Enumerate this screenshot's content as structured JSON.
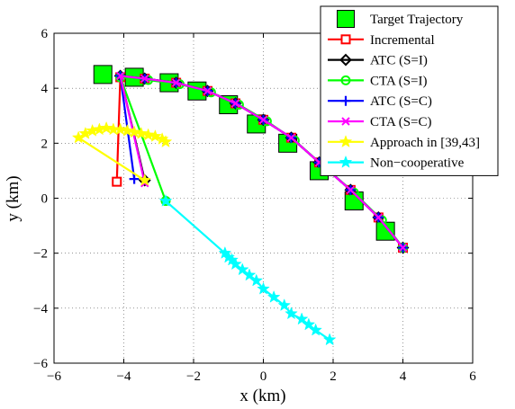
{
  "chart_data": {
    "type": "line",
    "title": "",
    "xlabel": "x (km)",
    "ylabel": "y (km)",
    "xlim": [
      -6,
      6
    ],
    "ylim": [
      -6,
      6
    ],
    "xticks": [
      -6,
      -4,
      -2,
      0,
      2,
      4,
      6
    ],
    "yticks": [
      -6,
      -4,
      -2,
      0,
      2,
      4,
      6
    ],
    "xtick_labels": [
      "−6",
      "−4",
      "−2",
      "0",
      "2",
      "4",
      "6"
    ],
    "ytick_labels": [
      "−6",
      "−4",
      "−2",
      "0",
      "2",
      "4",
      "6"
    ],
    "grid": true,
    "legend_position": "top-right",
    "series": [
      {
        "name": "Target Trajectory",
        "color": "#000000",
        "marker": "square-filled",
        "marker_fill": "#00ff00",
        "line": false,
        "points": [
          [
            -4.6,
            4.5
          ],
          [
            -3.7,
            4.4
          ],
          [
            -2.7,
            4.2
          ],
          [
            -1.9,
            3.9
          ],
          [
            -1.0,
            3.4
          ],
          [
            -0.2,
            2.7
          ],
          [
            0.7,
            2.0
          ],
          [
            1.6,
            1.0
          ],
          [
            2.6,
            -0.1
          ],
          [
            3.5,
            -1.2
          ]
        ]
      },
      {
        "name": "Incremental",
        "color": "#ff0000",
        "marker": "square-open",
        "line": true,
        "points": [
          [
            -4.2,
            0.6
          ],
          [
            -4.1,
            4.4
          ],
          [
            -3.4,
            4.35
          ],
          [
            -2.5,
            4.2
          ],
          [
            -1.6,
            3.9
          ],
          [
            -0.8,
            3.45
          ],
          [
            0.0,
            2.85
          ],
          [
            0.8,
            2.2
          ],
          [
            1.6,
            1.3
          ],
          [
            2.5,
            0.3
          ],
          [
            3.3,
            -0.7
          ],
          [
            4.0,
            -1.8
          ]
        ]
      },
      {
        "name": "ATC (S=I)",
        "color": "#000000",
        "marker": "diamond-open",
        "line": true,
        "points": [
          [
            -3.4,
            0.65
          ],
          [
            -4.1,
            4.45
          ],
          [
            -3.4,
            4.35
          ],
          [
            -2.5,
            4.2
          ],
          [
            -1.6,
            3.9
          ],
          [
            -0.8,
            3.45
          ],
          [
            0.0,
            2.85
          ],
          [
            0.8,
            2.2
          ],
          [
            1.6,
            1.3
          ],
          [
            2.5,
            0.3
          ],
          [
            3.3,
            -0.7
          ],
          [
            4.0,
            -1.8
          ]
        ]
      },
      {
        "name": "CTA (S=I)",
        "color": "#00ff00",
        "marker": "circle-open",
        "line": true,
        "points": [
          [
            -2.8,
            -0.1
          ],
          [
            -4.1,
            4.4
          ],
          [
            -3.3,
            4.3
          ],
          [
            -2.4,
            4.15
          ],
          [
            -1.5,
            3.85
          ],
          [
            -0.7,
            3.4
          ],
          [
            0.1,
            2.8
          ],
          [
            0.9,
            2.1
          ],
          [
            1.7,
            1.2
          ],
          [
            2.6,
            0.2
          ],
          [
            3.4,
            -0.8
          ],
          [
            4.0,
            -1.8
          ]
        ]
      },
      {
        "name": "ATC (S=C)",
        "color": "#0000ff",
        "marker": "plus",
        "line": true,
        "points": [
          [
            -3.7,
            0.7
          ],
          [
            -4.1,
            4.45
          ],
          [
            -3.4,
            4.35
          ],
          [
            -2.5,
            4.2
          ],
          [
            -1.6,
            3.9
          ],
          [
            -0.8,
            3.45
          ],
          [
            0.0,
            2.85
          ],
          [
            0.8,
            2.2
          ],
          [
            1.6,
            1.3
          ],
          [
            2.5,
            0.3
          ],
          [
            3.3,
            -0.7
          ],
          [
            4.0,
            -1.8
          ]
        ]
      },
      {
        "name": "CTA (S=C)",
        "color": "#ff00ff",
        "marker": "x",
        "line": true,
        "points": [
          [
            -3.4,
            0.55
          ],
          [
            -4.1,
            4.45
          ],
          [
            -3.4,
            4.35
          ],
          [
            -2.5,
            4.2
          ],
          [
            -1.6,
            3.9
          ],
          [
            -0.8,
            3.45
          ],
          [
            0.0,
            2.85
          ],
          [
            0.8,
            2.2
          ],
          [
            1.6,
            1.3
          ],
          [
            2.5,
            0.3
          ],
          [
            3.3,
            -0.7
          ],
          [
            4.0,
            -1.8
          ]
        ]
      },
      {
        "name": "Approach in [39,43]",
        "color": "#ffff00",
        "marker": "star-filled",
        "line": true,
        "points": [
          [
            -3.4,
            0.65
          ],
          [
            -5.3,
            2.2
          ],
          [
            -5.1,
            2.35
          ],
          [
            -4.9,
            2.45
          ],
          [
            -4.7,
            2.5
          ],
          [
            -4.5,
            2.55
          ],
          [
            -4.3,
            2.5
          ],
          [
            -4.1,
            2.5
          ],
          [
            -3.9,
            2.45
          ],
          [
            -3.7,
            2.4
          ],
          [
            -3.5,
            2.35
          ],
          [
            -3.3,
            2.3
          ],
          [
            -3.1,
            2.25
          ],
          [
            -2.9,
            2.15
          ],
          [
            -2.8,
            2.05
          ]
        ]
      },
      {
        "name": "Non−cooperative",
        "color": "#00ffff",
        "marker": "star-filled",
        "line": true,
        "points": [
          [
            -2.8,
            -0.1
          ],
          [
            -1.1,
            -2.0
          ],
          [
            -1.0,
            -2.15
          ],
          [
            -0.9,
            -2.25
          ],
          [
            -0.8,
            -2.4
          ],
          [
            -0.6,
            -2.6
          ],
          [
            -0.4,
            -2.8
          ],
          [
            -0.2,
            -3.0
          ],
          [
            0.0,
            -3.3
          ],
          [
            0.3,
            -3.6
          ],
          [
            0.6,
            -3.9
          ],
          [
            0.8,
            -4.2
          ],
          [
            1.1,
            -4.4
          ],
          [
            1.3,
            -4.6
          ],
          [
            1.5,
            -4.8
          ],
          [
            1.9,
            -5.15
          ]
        ]
      }
    ]
  }
}
